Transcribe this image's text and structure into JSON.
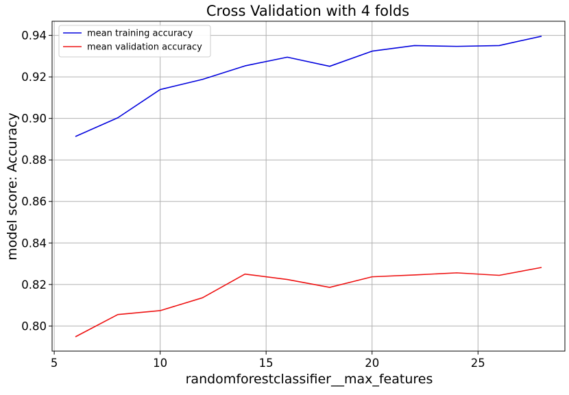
{
  "chart_data": {
    "type": "line",
    "title": "Cross Validation with 4 folds",
    "xlabel": "randomforestclassifier__max_features",
    "ylabel": "model score: Accuracy",
    "xlim": [
      4.9,
      29.1
    ],
    "ylim": [
      0.7879,
      0.9468
    ],
    "x_ticks": [
      5,
      10,
      15,
      20,
      25
    ],
    "y_ticks": [
      0.8,
      0.82,
      0.84,
      0.86,
      0.88,
      0.9,
      0.92,
      0.94
    ],
    "x_tick_labels": [
      "5",
      "10",
      "15",
      "20",
      "25"
    ],
    "y_tick_labels": [
      "0.80",
      "0.82",
      "0.84",
      "0.86",
      "0.88",
      "0.90",
      "0.92",
      "0.94"
    ],
    "grid": true,
    "legend_position": "top-left",
    "x": [
      6,
      8,
      10,
      12,
      14,
      16,
      18,
      20,
      22,
      24,
      26,
      28
    ],
    "series": [
      {
        "name": "mean training accuracy",
        "color": "#0000dd",
        "values": [
          0.8913,
          0.9003,
          0.9139,
          0.9188,
          0.9253,
          0.9295,
          0.9251,
          0.9324,
          0.9351,
          0.9347,
          0.9351,
          0.9396
        ]
      },
      {
        "name": "mean validation accuracy",
        "color": "#ee1111",
        "values": [
          0.7948,
          0.8055,
          0.8074,
          0.8136,
          0.825,
          0.8224,
          0.8186,
          0.8237,
          0.8246,
          0.8256,
          0.8244,
          0.8282
        ]
      }
    ]
  }
}
